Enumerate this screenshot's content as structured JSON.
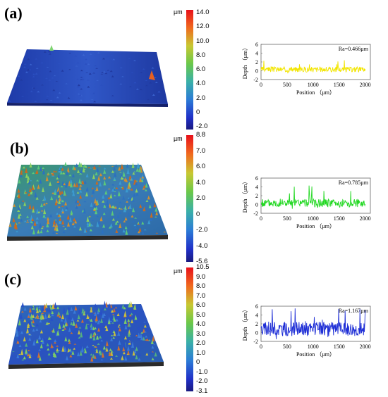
{
  "panels": [
    {
      "label": "(a)",
      "colorbar": {
        "unit": "µm",
        "ticks": [
          "14.0",
          "12.0",
          "10.0",
          "8.0",
          "6.0",
          "4.0",
          "2.0",
          "0",
          "-2.0"
        ]
      },
      "profile": {
        "ra": "Ra=0.466µm",
        "ylabel": "Depth （µm）",
        "xlabel": "Position （µm）",
        "line_color": "#f2e500"
      }
    },
    {
      "label": "(b)",
      "colorbar": {
        "unit": "µm",
        "ticks": [
          "8.8",
          "7.0",
          "6.0",
          "4.0",
          "2.0",
          "0",
          "-2.0",
          "-4.0",
          "-5.6"
        ]
      },
      "profile": {
        "ra": "Ra=0.785µm",
        "ylabel": "Depth （µm）",
        "xlabel": "Position （µm）",
        "line_color": "#22d822"
      }
    },
    {
      "label": "(c)",
      "colorbar": {
        "unit": "µm",
        "ticks": [
          "10.5",
          "9.0",
          "8.0",
          "7.0",
          "6.0",
          "5.0",
          "4.0",
          "3.0",
          "2.0",
          "1.0",
          "0",
          "-1.0",
          "-2.0",
          "-3.1"
        ]
      },
      "profile": {
        "ra": "Ra=1.167µm",
        "ylabel": "Depth （µm）",
        "xlabel": "Position （µm）",
        "line_color": "#1f2fd6"
      }
    }
  ],
  "chart_data": [
    {
      "type": "line",
      "title": "",
      "annotation": "Ra=0.466µm",
      "xlabel": "Position （µm）",
      "ylabel": "Depth （µm）",
      "xlim": [
        0,
        2100
      ],
      "ylim": [
        -2,
        6
      ],
      "xticks": [
        0,
        500,
        1000,
        1500,
        2000
      ],
      "yticks": [
        -2,
        0,
        2,
        4,
        6
      ],
      "series": [
        {
          "values_range": [
            -0.8,
            2.6
          ],
          "mean": 0.3
        }
      ]
    },
    {
      "type": "line",
      "title": "",
      "annotation": "Ra=0.785µm",
      "xlabel": "Position （µm）",
      "ylabel": "Depth （µm）",
      "xlim": [
        0,
        2100
      ],
      "ylim": [
        -2,
        6
      ],
      "xticks": [
        0,
        500,
        1000,
        1500,
        2000
      ],
      "yticks": [
        -2,
        0,
        2,
        4,
        6
      ],
      "series": [
        {
          "values_range": [
            -1.0,
            4.5
          ],
          "mean": 0.3
        }
      ]
    },
    {
      "type": "line",
      "title": "",
      "annotation": "Ra=1.167µm",
      "xlabel": "Position （µm）",
      "ylabel": "Depth （µm）",
      "xlim": [
        0,
        2100
      ],
      "ylim": [
        -2,
        6
      ],
      "xticks": [
        0,
        500,
        1000,
        1500,
        2000
      ],
      "yticks": [
        -2,
        0,
        2,
        4,
        6
      ],
      "series": [
        {
          "values_range": [
            -2.0,
            6.0
          ],
          "mean": 0.8
        }
      ]
    }
  ]
}
